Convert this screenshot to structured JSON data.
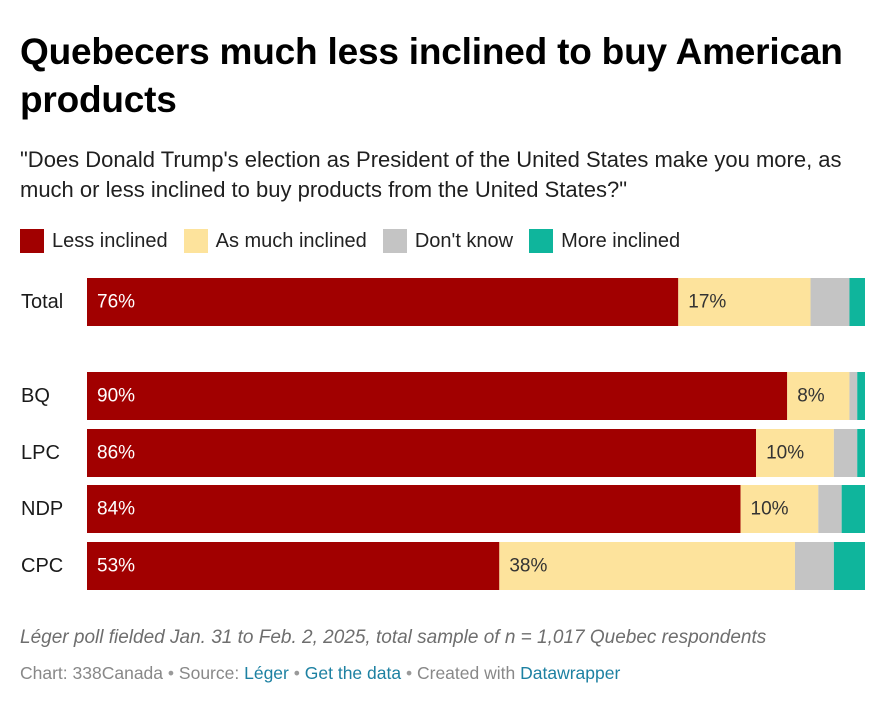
{
  "title": "Quebecers much less inclined to buy American products",
  "subtitle": "\"Does Donald Trump's election as President of the United States make you more, as much or less inclined to buy products from the United States?\"",
  "chart_data": {
    "type": "bar",
    "orientation": "horizontal",
    "stacked": true,
    "xlim": [
      0,
      100
    ],
    "legend_placement": "top",
    "categories": [
      "Total",
      "BQ",
      "LPC",
      "NDP",
      "CPC"
    ],
    "series": [
      {
        "name": "Less inclined",
        "color": "#a10000",
        "values": [
          76,
          90,
          86,
          84,
          53
        ],
        "labels": [
          "76%",
          "90%",
          "86%",
          "84%",
          "53%"
        ],
        "label_style": "light"
      },
      {
        "name": "As much inclined",
        "color": "#fde39c",
        "values": [
          17,
          8,
          10,
          10,
          38
        ],
        "labels": [
          "17%",
          "8%",
          "10%",
          "10%",
          "38%"
        ],
        "label_style": "dark"
      },
      {
        "name": "Don't know",
        "color": "#c4c4c4",
        "values": [
          5,
          1,
          3,
          3,
          5
        ],
        "labels": [
          "",
          "",
          "",
          "",
          ""
        ],
        "label_style": "dark"
      },
      {
        "name": "More inclined",
        "color": "#0fb59c",
        "values": [
          2,
          1,
          1,
          3,
          4
        ],
        "labels": [
          "",
          "",
          "",
          "",
          ""
        ],
        "label_style": "dark"
      }
    ]
  },
  "notes": "Léger poll fielded Jan. 31 to Feb. 2, 2025, total sample of n = 1,017 Quebec respondents",
  "footer": {
    "chart_prefix": "Chart: 338Canada",
    "source_prefix": "Source:",
    "source_link": "Léger",
    "data_link": "Get the data",
    "created_prefix": "Created with",
    "created_link": "Datawrapper",
    "separator": "•"
  }
}
